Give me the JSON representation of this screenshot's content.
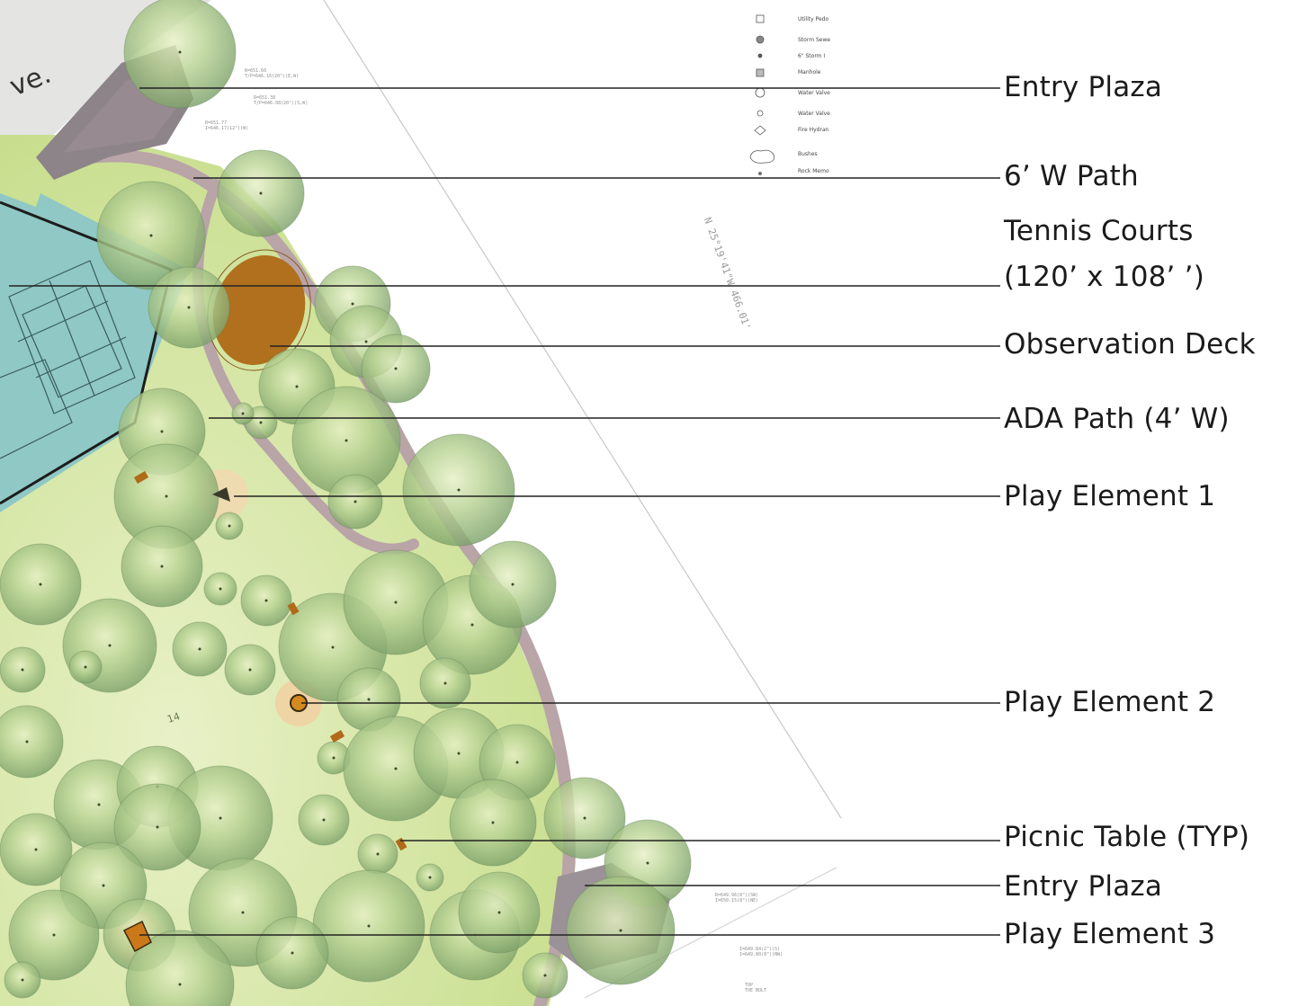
{
  "street_label": "ve.",
  "bearing_label": "N 25°19'41\"W 466.01'",
  "contour_label": "14",
  "legend": [
    {
      "icon": "square-grid-icon",
      "label": "Utility Pedo"
    },
    {
      "icon": "hatched-circle-icon",
      "label": "Storm Sewe"
    },
    {
      "icon": "small-dot-icon",
      "label": "6\" Storm I"
    },
    {
      "icon": "square-dot-icon",
      "label": "Manhole"
    },
    {
      "icon": "circle-outline-icon",
      "label": "Water Valve"
    },
    {
      "icon": "small-circle-icon",
      "label": "Water Valve"
    },
    {
      "icon": "diamond-icon",
      "label": "Fire Hydran"
    },
    {
      "icon": "cloud-icon",
      "label": "Bushes"
    },
    {
      "icon": "small-dot-icon",
      "label": "Rock Memo"
    }
  ],
  "spot_elevations": [
    {
      "line1": "R=651.66",
      "line2": "T/P=646.16(20\")(E,W)"
    },
    {
      "line1": "R=651.38",
      "line2": "T/P=646.08(20\")(S,W)"
    },
    {
      "line1": "R=651.77",
      "line2": "I=646.17(12\")(W)"
    },
    {
      "line1": "R=649.96(8\")(SW)",
      "line2": "I=650.15(8\")(NE)"
    },
    {
      "line1": "I=649.84(2\")(S)",
      "line2": "I=649.80(8\")(NW)"
    },
    {
      "line1": "TOP",
      "line2": "TOE BOLT"
    }
  ],
  "callouts": [
    {
      "label": "Entry Plaza"
    },
    {
      "label": "6’ W Path"
    },
    {
      "label": "Tennis Courts",
      "label2": "(120’ x 108’ ’)"
    },
    {
      "label": "Observation Deck"
    },
    {
      "label": "ADA Path (4’ W)"
    },
    {
      "label": "Play Element 1"
    },
    {
      "label": "Play Element 2"
    },
    {
      "label": "Picnic Table (TYP)"
    },
    {
      "label": "Entry Plaza"
    },
    {
      "label": "Play Element 3"
    }
  ],
  "colors": {
    "lawn": "#cfe29c",
    "lawn_light": "#e5efc4",
    "path": "#b9a4a8",
    "plaza": "#8c8488",
    "court": "#8fc8c4",
    "deck": "#b0701e",
    "tree": "#a9c98a",
    "leader": "#222222"
  }
}
